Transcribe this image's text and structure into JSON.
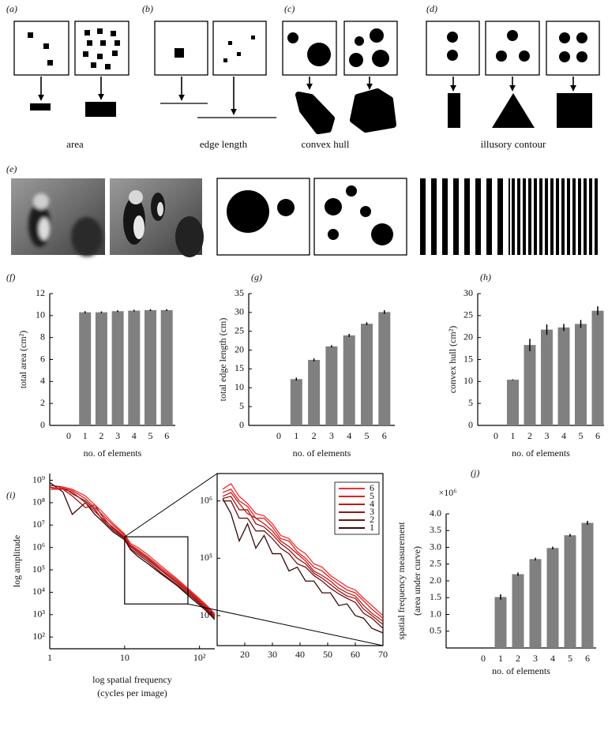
{
  "panel_labels": [
    "(a)",
    "(b)",
    "(c)",
    "(d)",
    "(e)",
    "(f)",
    "(g)",
    "(h)",
    "(i)",
    "(j)"
  ],
  "captions": [
    "area",
    "edge length",
    "convex hull",
    "illusory contour"
  ],
  "chart_data": [
    {
      "type": "bar",
      "ylabel": "total area (cm²)",
      "xlabel": "no. of elements",
      "categories": [
        "0",
        "1",
        "2",
        "3",
        "4",
        "5",
        "6"
      ],
      "values": [
        0,
        10.3,
        10.3,
        10.4,
        10.45,
        10.5,
        10.5
      ],
      "errors": [
        null,
        0.1,
        0.08,
        0.08,
        0.08,
        0.08,
        0.08
      ],
      "color": "#808080",
      "ylim": [
        0,
        12
      ],
      "yticks": [
        0,
        2,
        4,
        6,
        8,
        10,
        12
      ]
    },
    {
      "type": "bar",
      "ylabel": "total edge length (cm)",
      "xlabel": "no. of elements",
      "categories": [
        "0",
        "1",
        "2",
        "3",
        "4",
        "5",
        "6"
      ],
      "values": [
        0,
        12.3,
        17.4,
        21,
        23.9,
        27,
        30.1
      ],
      "errors": [
        null,
        0.4,
        0.4,
        0.3,
        0.4,
        0.4,
        0.5
      ],
      "color": "#808080",
      "ylim": [
        0,
        35
      ],
      "yticks": [
        0,
        5,
        10,
        15,
        20,
        25,
        30,
        35
      ]
    },
    {
      "type": "bar",
      "ylabel": "convex hull (cm²)",
      "xlabel": "no. of elements",
      "categories": [
        "0",
        "1",
        "2",
        "3",
        "4",
        "5",
        "6"
      ],
      "values": [
        0,
        10.4,
        18.3,
        21.8,
        22.3,
        23.1,
        26.1
      ],
      "errors": [
        null,
        0.1,
        1.4,
        1.2,
        0.8,
        0.9,
        1.0
      ],
      "color": "#808080",
      "ylim": [
        0,
        30
      ],
      "yticks": [
        0,
        5,
        10,
        15,
        20,
        25,
        30
      ]
    },
    {
      "type": "line",
      "ylabel": "log amplitude",
      "xlabel": [
        "log spatial frequency",
        "(cycles per image)"
      ],
      "log_x": true,
      "log_y": true,
      "x": [
        1,
        1.5,
        2,
        3,
        4,
        5,
        7,
        10,
        12,
        15,
        20,
        30,
        50,
        80,
        120,
        160
      ],
      "series": [
        {
          "name": "1",
          "color": "#3a0808",
          "values": [
            800000000.0,
            300000000.0,
            30000000.0,
            100000000.0,
            30000000.0,
            15000000.0,
            5000000.0,
            2200000.0,
            800000.0,
            400000.0,
            200000.0,
            70000.0,
            20000.0,
            5000.0,
            1600.0,
            600.0
          ]
        },
        {
          "name": "2",
          "color": "#701010",
          "values": [
            600000000.0,
            500000000.0,
            250000000.0,
            120000000.0,
            50000000.0,
            18000000.0,
            6000000.0,
            2500000.0,
            900000.0,
            500000.0,
            250000.0,
            80000.0,
            22000.0,
            6000.0,
            1800.0,
            700.0
          ]
        },
        {
          "name": "3",
          "color": "#9a1414",
          "values": [
            500000000.0,
            400000000.0,
            200000000.0,
            60000000.0,
            80000000.0,
            25000000.0,
            7000000.0,
            2800000.0,
            1100000.0,
            600000.0,
            300000.0,
            100000.0,
            26000.0,
            7000.0,
            2000.0,
            800.0
          ]
        },
        {
          "name": "4",
          "color": "#c01818",
          "values": [
            400000000.0,
            400000000.0,
            300000000.0,
            100000000.0,
            40000000.0,
            20000000.0,
            8000000.0,
            3000000.0,
            1200000.0,
            700000.0,
            350000.0,
            110000.0,
            30000.0,
            8000.0,
            2300.0,
            900.0
          ]
        },
        {
          "name": "5",
          "color": "#e02020",
          "values": [
            400000000.0,
            450000000.0,
            350000000.0,
            150000000.0,
            60000000.0,
            30000000.0,
            10000000.0,
            3500000.0,
            1300000.0,
            800000.0,
            400000.0,
            130000.0,
            35000.0,
            9000.0,
            2600.0,
            1000.0
          ]
        },
        {
          "name": "6",
          "color": "#ff2a2a",
          "values": [
            400000000.0,
            500000000.0,
            400000000.0,
            200000000.0,
            80000000.0,
            40000000.0,
            12000000.0,
            4000000.0,
            1500000.0,
            1000000.0,
            500000.0,
            160000.0,
            40000.0,
            10000.0,
            3000.0,
            1100.0
          ]
        }
      ],
      "xlim": [
        1,
        160
      ],
      "xticks": [
        1,
        10,
        {
          "value": 100,
          "label": "10²"
        }
      ],
      "ylim": [
        30,
        2000000000.0
      ],
      "yticks": [
        {
          "value": 100,
          "label": "10²"
        },
        {
          "value": 1000,
          "label": "10³"
        },
        {
          "value": 10000,
          "label": "10⁴"
        },
        {
          "value": 100000,
          "label": "10⁵"
        },
        {
          "value": 1000000,
          "label": "10⁶"
        },
        {
          "value": 10000000,
          "label": "10⁷"
        },
        {
          "value": 100000000,
          "label": "10⁸"
        },
        {
          "value": 1000000000,
          "label": "10⁹"
        }
      ]
    },
    {
      "type": "line",
      "log_x": false,
      "log_y": true,
      "frame": true,
      "legend": "upper right",
      "x": [
        12,
        15,
        18,
        21,
        24,
        27,
        30,
        33,
        36,
        39,
        42,
        45,
        48,
        51,
        54,
        57,
        60,
        63,
        66,
        70
      ],
      "series": [
        {
          "name": "1",
          "color": "#3a0808",
          "values": [
            1100000.0,
            600000.0,
            200000.0,
            400000.0,
            150000.0,
            250000.0,
            120000.0,
            120000.0,
            60000.0,
            70000.0,
            40000.0,
            40000.0,
            25000.0,
            25000.0,
            15000.0,
            16000.0,
            10000.0,
            9000.0,
            6000.0,
            5000.0
          ]
        },
        {
          "name": "2",
          "color": "#701010",
          "values": [
            1000000.0,
            1000000.0,
            500000.0,
            500000.0,
            300000.0,
            300000.0,
            220000.0,
            150000.0,
            120000.0,
            80000.0,
            70000.0,
            50000.0,
            40000.0,
            30000.0,
            24000.0,
            20000.0,
            17000.0,
            11000.0,
            9000.0,
            6000.0
          ]
        },
        {
          "name": "3",
          "color": "#9a1414",
          "values": [
            1100000.0,
            1200000.0,
            700000.0,
            700000.0,
            400000.0,
            350000.0,
            260000.0,
            180000.0,
            140000.0,
            100000.0,
            80000.0,
            55000.0,
            45000.0,
            35000.0,
            27000.0,
            22000.0,
            20000.0,
            13000.0,
            10000.0,
            7000.0
          ]
        },
        {
          "name": "4",
          "color": "#c01818",
          "values": [
            1200000.0,
            1400000.0,
            900000.0,
            600000.0,
            500000.0,
            400000.0,
            300000.0,
            200000.0,
            160000.0,
            120000.0,
            90000.0,
            60000.0,
            50000.0,
            40000.0,
            30000.0,
            25000.0,
            22000.0,
            15000.0,
            11000.0,
            8000.0
          ]
        },
        {
          "name": "5",
          "color": "#e02020",
          "values": [
            1400000.0,
            1600000.0,
            1000000.0,
            800000.0,
            500000.0,
            500000.0,
            350000.0,
            220000.0,
            200000.0,
            130000.0,
            100000.0,
            70000.0,
            60000.0,
            45000.0,
            35000.0,
            28000.0,
            25000.0,
            18000.0,
            13000.0,
            9000.0
          ]
        },
        {
          "name": "6",
          "color": "#ff2a2a",
          "values": [
            1600000.0,
            2000000.0,
            1200000.0,
            900000.0,
            600000.0,
            550000.0,
            400000.0,
            250000.0,
            220000.0,
            150000.0,
            120000.0,
            80000.0,
            70000.0,
            50000.0,
            40000.0,
            32000.0,
            28000.0,
            20000.0,
            15000.0,
            10000.0
          ]
        }
      ],
      "xlim": [
        10,
        70
      ],
      "xticks": [
        20,
        30,
        40,
        50,
        60,
        70
      ],
      "ylim": [
        3000,
        3000000.0
      ],
      "yticks": [
        {
          "value": 10000,
          "label": "10⁴"
        },
        {
          "value": 100000,
          "label": "10⁵"
        },
        {
          "value": 1000000,
          "label": "10⁶"
        }
      ]
    },
    {
      "type": "bar",
      "ylabel": [
        "spatial frequency measurement",
        "(area under curve)"
      ],
      "xlabel": "no. of elements",
      "y_multiplier": "×10⁶",
      "categories": [
        "0",
        "1",
        "2",
        "3",
        "4",
        "5",
        "6"
      ],
      "values": [
        0,
        1.52,
        2.2,
        2.65,
        2.98,
        3.36,
        3.73
      ],
      "errors": [
        null,
        0.08,
        0.05,
        0.04,
        0.04,
        0.04,
        0.06
      ],
      "color": "#808080",
      "ylim": [
        0,
        4
      ],
      "yticks": [
        0.5,
        {
          "value": 1,
          "label": "1.0"
        },
        1.5,
        {
          "value": 2,
          "label": "2.0"
        },
        2.5,
        {
          "value": 3,
          "label": "3.0"
        },
        3.5,
        {
          "value": 4,
          "label": "4.0"
        }
      ]
    }
  ]
}
